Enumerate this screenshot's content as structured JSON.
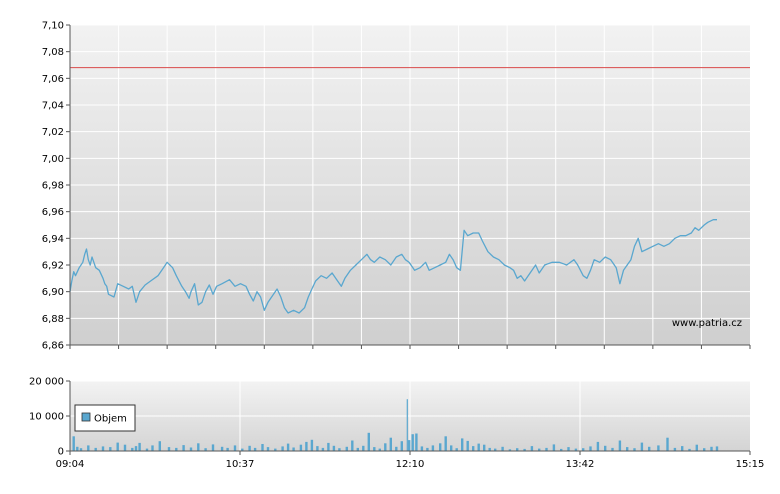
{
  "chart_data": [
    {
      "type": "line",
      "ylim": [
        6.86,
        7.1
      ],
      "y_ticks": [
        "6,86",
        "6,88",
        "6,90",
        "6,92",
        "6,94",
        "6,96",
        "6,98",
        "7,00",
        "7,02",
        "7,04",
        "7,06",
        "7,08",
        "7,10"
      ],
      "reference_line": {
        "value": 7.068,
        "color": "#d94a4a"
      },
      "watermark": "www.patria.cz",
      "series": [
        {
          "color": "#5aa7cf",
          "points": [
            [
              "09:04",
              6.9
            ],
            [
              "09:05",
              6.908
            ],
            [
              "09:06",
              6.915
            ],
            [
              "09:07",
              6.912
            ],
            [
              "09:09",
              6.918
            ],
            [
              "09:11",
              6.922
            ],
            [
              "09:12",
              6.928
            ],
            [
              "09:13",
              6.932
            ],
            [
              "09:14",
              6.924
            ],
            [
              "09:15",
              6.92
            ],
            [
              "09:16",
              6.926
            ],
            [
              "09:18",
              6.918
            ],
            [
              "09:20",
              6.916
            ],
            [
              "09:22",
              6.91
            ],
            [
              "09:23",
              6.906
            ],
            [
              "09:24",
              6.904
            ],
            [
              "09:25",
              6.898
            ],
            [
              "09:28",
              6.896
            ],
            [
              "09:30",
              6.906
            ],
            [
              "09:33",
              6.904
            ],
            [
              "09:36",
              6.902
            ],
            [
              "09:38",
              6.904
            ],
            [
              "09:40",
              6.892
            ],
            [
              "09:42",
              6.9
            ],
            [
              "09:45",
              6.905
            ],
            [
              "09:48",
              6.908
            ],
            [
              "09:52",
              6.912
            ],
            [
              "09:55",
              6.918
            ],
            [
              "09:57",
              6.922
            ],
            [
              "10:00",
              6.918
            ],
            [
              "10:02",
              6.912
            ],
            [
              "10:05",
              6.904
            ],
            [
              "10:07",
              6.9
            ],
            [
              "10:09",
              6.895
            ],
            [
              "10:10",
              6.9
            ],
            [
              "10:12",
              6.906
            ],
            [
              "10:14",
              6.89
            ],
            [
              "10:16",
              6.892
            ],
            [
              "10:18",
              6.9
            ],
            [
              "10:20",
              6.905
            ],
            [
              "10:22",
              6.898
            ],
            [
              "10:24",
              6.904
            ],
            [
              "10:27",
              6.906
            ],
            [
              "10:31",
              6.909
            ],
            [
              "10:34",
              6.904
            ],
            [
              "10:37",
              6.906
            ],
            [
              "10:40",
              6.904
            ],
            [
              "10:42",
              6.898
            ],
            [
              "10:44",
              6.893
            ],
            [
              "10:46",
              6.9
            ],
            [
              "10:48",
              6.896
            ],
            [
              "10:50",
              6.886
            ],
            [
              "10:52",
              6.892
            ],
            [
              "10:55",
              6.898
            ],
            [
              "10:57",
              6.902
            ],
            [
              "10:59",
              6.896
            ],
            [
              "11:01",
              6.888
            ],
            [
              "11:03",
              6.884
            ],
            [
              "11:06",
              6.886
            ],
            [
              "11:09",
              6.884
            ],
            [
              "11:12",
              6.888
            ],
            [
              "11:14",
              6.896
            ],
            [
              "11:16",
              6.902
            ],
            [
              "11:18",
              6.908
            ],
            [
              "11:21",
              6.912
            ],
            [
              "11:24",
              6.91
            ],
            [
              "11:27",
              6.914
            ],
            [
              "11:30",
              6.908
            ],
            [
              "11:32",
              6.904
            ],
            [
              "11:34",
              6.91
            ],
            [
              "11:37",
              6.916
            ],
            [
              "11:40",
              6.92
            ],
            [
              "11:43",
              6.924
            ],
            [
              "11:46",
              6.928
            ],
            [
              "11:48",
              6.924
            ],
            [
              "11:50",
              6.922
            ],
            [
              "11:53",
              6.926
            ],
            [
              "11:56",
              6.924
            ],
            [
              "11:59",
              6.92
            ],
            [
              "12:02",
              6.926
            ],
            [
              "12:05",
              6.928
            ],
            [
              "12:07",
              6.924
            ],
            [
              "12:09",
              6.922
            ],
            [
              "12:12",
              6.916
            ],
            [
              "12:15",
              6.918
            ],
            [
              "12:18",
              6.922
            ],
            [
              "12:20",
              6.916
            ],
            [
              "12:23",
              6.918
            ],
            [
              "12:26",
              6.92
            ],
            [
              "12:29",
              6.922
            ],
            [
              "12:31",
              6.928
            ],
            [
              "12:33",
              6.924
            ],
            [
              "12:35",
              6.918
            ],
            [
              "12:37",
              6.916
            ],
            [
              "12:39",
              6.946
            ],
            [
              "12:41",
              6.942
            ],
            [
              "12:44",
              6.944
            ],
            [
              "12:47",
              6.944
            ],
            [
              "12:49",
              6.938
            ],
            [
              "12:52",
              6.93
            ],
            [
              "12:55",
              6.926
            ],
            [
              "12:58",
              6.924
            ],
            [
              "13:01",
              6.92
            ],
            [
              "13:04",
              6.918
            ],
            [
              "13:06",
              6.916
            ],
            [
              "13:08",
              6.91
            ],
            [
              "13:10",
              6.912
            ],
            [
              "13:12",
              6.908
            ],
            [
              "13:15",
              6.914
            ],
            [
              "13:18",
              6.92
            ],
            [
              "13:20",
              6.914
            ],
            [
              "13:23",
              6.92
            ],
            [
              "13:27",
              6.922
            ],
            [
              "13:31",
              6.922
            ],
            [
              "13:35",
              6.92
            ],
            [
              "13:39",
              6.924
            ],
            [
              "13:41",
              6.92
            ],
            [
              "13:44",
              6.912
            ],
            [
              "13:46",
              6.91
            ],
            [
              "13:48",
              6.916
            ],
            [
              "13:50",
              6.924
            ],
            [
              "13:53",
              6.922
            ],
            [
              "13:56",
              6.926
            ],
            [
              "13:59",
              6.924
            ],
            [
              "14:02",
              6.918
            ],
            [
              "14:04",
              6.906
            ],
            [
              "14:06",
              6.916
            ],
            [
              "14:08",
              6.92
            ],
            [
              "14:10",
              6.924
            ],
            [
              "14:12",
              6.934
            ],
            [
              "14:14",
              6.94
            ],
            [
              "14:16",
              6.93
            ],
            [
              "14:19",
              6.932
            ],
            [
              "14:22",
              6.934
            ],
            [
              "14:25",
              6.936
            ],
            [
              "14:28",
              6.934
            ],
            [
              "14:31",
              6.936
            ],
            [
              "14:34",
              6.94
            ],
            [
              "14:37",
              6.942
            ],
            [
              "14:40",
              6.942
            ],
            [
              "14:43",
              6.944
            ],
            [
              "14:45",
              6.948
            ],
            [
              "14:47",
              6.946
            ],
            [
              "14:50",
              6.95
            ],
            [
              "14:52",
              6.952
            ],
            [
              "14:55",
              6.954
            ],
            [
              "14:57",
              6.954
            ]
          ]
        }
      ]
    },
    {
      "type": "bar",
      "ylim": [
        0,
        20000
      ],
      "y_ticks": [
        "0",
        "10 000",
        "20 000"
      ],
      "x_ticks": [
        "09:04",
        "10:37",
        "12:10",
        "13:42",
        "15:15"
      ],
      "x_range": [
        "09:04",
        "15:15"
      ],
      "legend": "Objem",
      "legend_position": "left",
      "series": [
        {
          "color": "#5aa7cf",
          "points": [
            [
              "09:06",
              4200
            ],
            [
              "09:08",
              1200
            ],
            [
              "09:10",
              800
            ],
            [
              "09:14",
              1600
            ],
            [
              "09:18",
              900
            ],
            [
              "09:22",
              1300
            ],
            [
              "09:26",
              1100
            ],
            [
              "09:30",
              2400
            ],
            [
              "09:34",
              1800
            ],
            [
              "09:38",
              900
            ],
            [
              "09:40",
              1400
            ],
            [
              "09:42",
              2300
            ],
            [
              "09:46",
              700
            ],
            [
              "09:49",
              1600
            ],
            [
              "09:53",
              2800
            ],
            [
              "09:58",
              1100
            ],
            [
              "10:02",
              900
            ],
            [
              "10:06",
              1700
            ],
            [
              "10:10",
              1000
            ],
            [
              "10:14",
              2200
            ],
            [
              "10:18",
              800
            ],
            [
              "10:22",
              1900
            ],
            [
              "10:27",
              1200
            ],
            [
              "10:30",
              900
            ],
            [
              "10:34",
              1600
            ],
            [
              "10:38",
              700
            ],
            [
              "10:42",
              1500
            ],
            [
              "10:45",
              900
            ],
            [
              "10:49",
              2000
            ],
            [
              "10:52",
              1100
            ],
            [
              "10:56",
              700
            ],
            [
              "11:00",
              1300
            ],
            [
              "11:03",
              2100
            ],
            [
              "11:06",
              1000
            ],
            [
              "11:10",
              1800
            ],
            [
              "11:13",
              2600
            ],
            [
              "11:16",
              3200
            ],
            [
              "11:19",
              1400
            ],
            [
              "11:22",
              900
            ],
            [
              "11:25",
              2300
            ],
            [
              "11:28",
              1500
            ],
            [
              "11:31",
              800
            ],
            [
              "11:35",
              1200
            ],
            [
              "11:38",
              3000
            ],
            [
              "11:41",
              900
            ],
            [
              "11:44",
              1500
            ],
            [
              "11:47",
              5200
            ],
            [
              "11:50",
              1100
            ],
            [
              "11:53",
              700
            ],
            [
              "11:56",
              2200
            ],
            [
              "11:59",
              3800
            ],
            [
              "12:02",
              1200
            ],
            [
              "12:05",
              2800
            ],
            [
              "12:08",
              14800
            ],
            [
              "12:09",
              3100
            ],
            [
              "12:11",
              4800
            ],
            [
              "12:13",
              5000
            ],
            [
              "12:16",
              1300
            ],
            [
              "12:19",
              900
            ],
            [
              "12:22",
              1600
            ],
            [
              "12:26",
              2200
            ],
            [
              "12:29",
              4200
            ],
            [
              "12:32",
              1600
            ],
            [
              "12:35",
              800
            ],
            [
              "12:38",
              3600
            ],
            [
              "12:41",
              2900
            ],
            [
              "12:44",
              1400
            ],
            [
              "12:47",
              2100
            ],
            [
              "12:50",
              1800
            ],
            [
              "12:53",
              900
            ],
            [
              "12:56",
              700
            ],
            [
              "13:00",
              1200
            ],
            [
              "13:04",
              500
            ],
            [
              "13:08",
              800
            ],
            [
              "13:12",
              600
            ],
            [
              "13:16",
              1400
            ],
            [
              "13:20",
              700
            ],
            [
              "13:24",
              900
            ],
            [
              "13:28",
              1900
            ],
            [
              "13:32",
              600
            ],
            [
              "13:36",
              1100
            ],
            [
              "13:40",
              700
            ],
            [
              "13:44",
              800
            ],
            [
              "13:48",
              1300
            ],
            [
              "13:52",
              2600
            ],
            [
              "13:56",
              1500
            ],
            [
              "14:00",
              900
            ],
            [
              "14:04",
              3000
            ],
            [
              "14:08",
              1100
            ],
            [
              "14:12",
              800
            ],
            [
              "14:16",
              2400
            ],
            [
              "14:20",
              1200
            ],
            [
              "14:25",
              1600
            ],
            [
              "14:30",
              3800
            ],
            [
              "14:34",
              900
            ],
            [
              "14:38",
              1400
            ],
            [
              "14:42",
              600
            ],
            [
              "14:46",
              1800
            ],
            [
              "14:50",
              800
            ],
            [
              "14:54",
              1200
            ],
            [
              "14:57",
              1300
            ]
          ]
        }
      ]
    }
  ]
}
